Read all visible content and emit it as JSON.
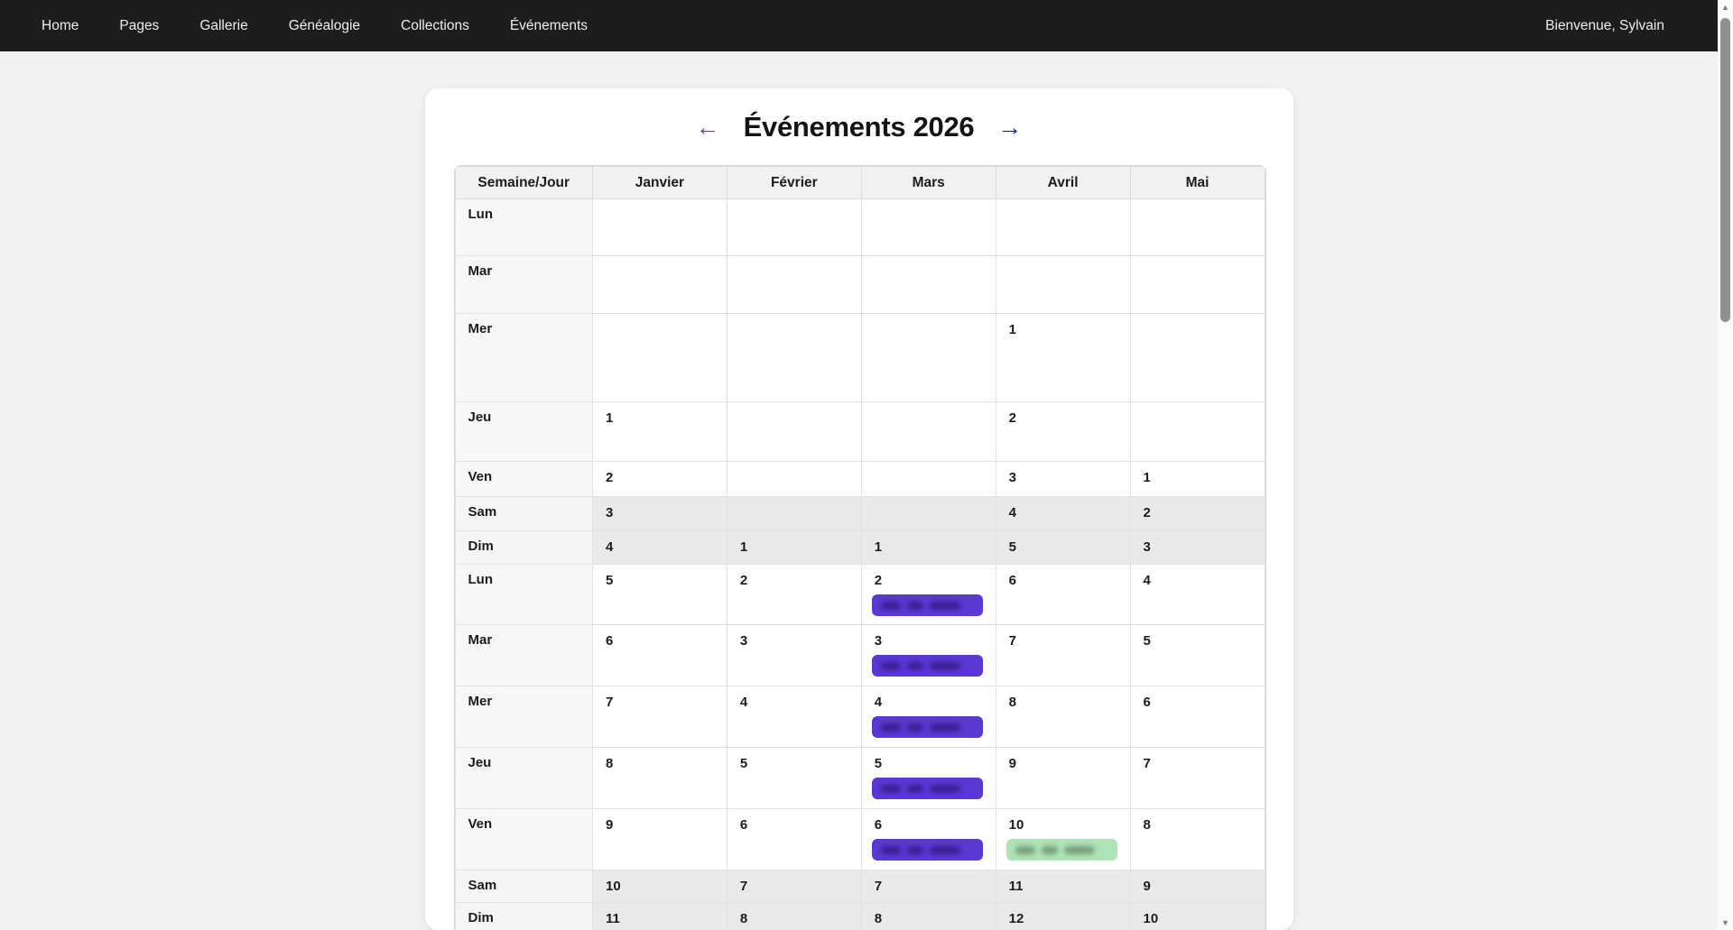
{
  "nav": {
    "items": [
      "Home",
      "Pages",
      "Gallerie",
      "Généalogie",
      "Collections",
      "Événements"
    ],
    "welcome": "Bienvenue, Sylvain"
  },
  "page": {
    "title": "Événements 2026",
    "prev_arrow": "←",
    "next_arrow": "→"
  },
  "calendar": {
    "headers": [
      "Semaine/Jour",
      "Janvier",
      "Février",
      "Mars",
      "Avril",
      "Mai"
    ],
    "rows": [
      {
        "day": "Lun",
        "weekend": false,
        "cells": [
          {},
          {},
          {},
          {},
          {}
        ]
      },
      {
        "day": "Mar",
        "weekend": false,
        "cells": [
          {},
          {},
          {},
          {},
          {}
        ]
      },
      {
        "day": "Mer",
        "weekend": false,
        "cells": [
          {},
          {},
          {},
          {
            "n": "1"
          },
          {}
        ]
      },
      {
        "day": "Jeu",
        "weekend": false,
        "cells": [
          {
            "n": "1"
          },
          {},
          {},
          {
            "n": "2"
          },
          {}
        ]
      },
      {
        "day": "Ven",
        "weekend": false,
        "cells": [
          {
            "n": "2"
          },
          {},
          {},
          {
            "n": "3"
          },
          {
            "n": "1"
          }
        ]
      },
      {
        "day": "Sam",
        "weekend": true,
        "cells": [
          {
            "n": "3"
          },
          {},
          {},
          {
            "n": "4"
          },
          {
            "n": "2"
          }
        ]
      },
      {
        "day": "Dim",
        "weekend": true,
        "cells": [
          {
            "n": "4"
          },
          {
            "n": "1"
          },
          {
            "n": "1"
          },
          {
            "n": "5"
          },
          {
            "n": "3"
          }
        ]
      },
      {
        "day": "Lun",
        "weekend": false,
        "cells": [
          {
            "n": "5"
          },
          {
            "n": "2"
          },
          {
            "n": "2",
            "event": "purple"
          },
          {
            "n": "6"
          },
          {
            "n": "4"
          }
        ]
      },
      {
        "day": "Mar",
        "weekend": false,
        "cells": [
          {
            "n": "6"
          },
          {
            "n": "3"
          },
          {
            "n": "3",
            "event": "purple"
          },
          {
            "n": "7"
          },
          {
            "n": "5"
          }
        ]
      },
      {
        "day": "Mer",
        "weekend": false,
        "cells": [
          {
            "n": "7"
          },
          {
            "n": "4"
          },
          {
            "n": "4",
            "event": "purple"
          },
          {
            "n": "8"
          },
          {
            "n": "6"
          }
        ]
      },
      {
        "day": "Jeu",
        "weekend": false,
        "cells": [
          {
            "n": "8"
          },
          {
            "n": "5"
          },
          {
            "n": "5",
            "event": "purple"
          },
          {
            "n": "9"
          },
          {
            "n": "7"
          }
        ]
      },
      {
        "day": "Ven",
        "weekend": false,
        "cells": [
          {
            "n": "9"
          },
          {
            "n": "6"
          },
          {
            "n": "6",
            "event": "purple"
          },
          {
            "n": "10",
            "event": "green"
          },
          {
            "n": "8"
          }
        ]
      },
      {
        "day": "Sam",
        "weekend": true,
        "cells": [
          {
            "n": "10"
          },
          {
            "n": "7"
          },
          {
            "n": "7"
          },
          {
            "n": "11"
          },
          {
            "n": "9"
          }
        ]
      },
      {
        "day": "Dim",
        "weekend": true,
        "cells": [
          {
            "n": "11"
          },
          {
            "n": "8"
          },
          {
            "n": "8"
          },
          {
            "n": "12"
          },
          {
            "n": "10"
          }
        ]
      }
    ],
    "event_labels_blurred": true
  },
  "icons": {
    "scroll_up": "▲",
    "scroll_down": "▼"
  },
  "colors": {
    "nav_bg": "#1d1d1d",
    "page_bg": "#f2f2f2",
    "link_prev_purple": "#6b3ab0",
    "link_next_blue": "#1414d2",
    "event_purple": "#5a38d4",
    "event_green": "#aee3b5",
    "weekend_row": "#e9e9e9"
  }
}
